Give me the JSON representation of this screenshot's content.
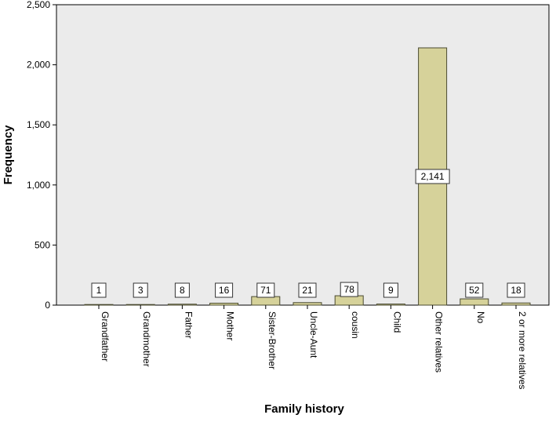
{
  "chart_data": {
    "type": "bar",
    "xlabel": "Family history",
    "ylabel": "Frequency",
    "ylim": [
      0,
      2500
    ],
    "yticks": [
      0,
      500,
      1000,
      1500,
      2000,
      2500
    ],
    "ytick_labels": [
      "0",
      "500",
      "1,000",
      "1,500",
      "2,000",
      "2,500"
    ],
    "categories": [
      "Grandfather",
      "Grandmother",
      "Father",
      "Mother",
      "Sister-Brother",
      "Uncle-Aunt",
      "cousin",
      "Child",
      "Other relatives",
      "No",
      "2 or more relatives"
    ],
    "values": [
      1,
      3,
      8,
      16,
      71,
      21,
      78,
      9,
      2141,
      52,
      18
    ],
    "value_labels": [
      "1",
      "3",
      "8",
      "16",
      "71",
      "21",
      "78",
      "9",
      "2,141",
      "52",
      "18"
    ],
    "grid": false,
    "colors": {
      "plot_background": "#ebebeb",
      "bar_fill": "#d6d29a",
      "bar_stroke": "#4a4a30",
      "label_box_fill": "#ffffff",
      "label_box_stroke": "#333333"
    }
  }
}
